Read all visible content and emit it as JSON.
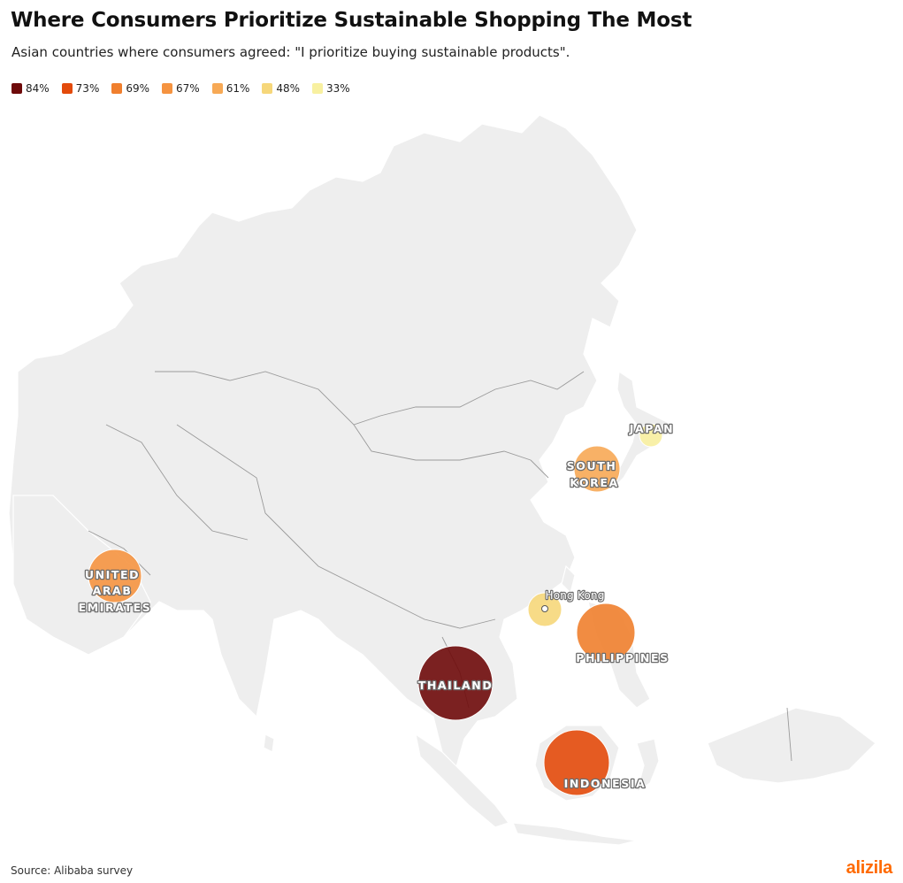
{
  "title": "Where Consumers Prioritize Sustainable Shopping The Most",
  "subtitle": "Asian countries where consumers agreed: \"I prioritize buying sustainable products\".",
  "legend": [
    {
      "label": "84%",
      "color": "#6e0a0a"
    },
    {
      "label": "73%",
      "color": "#e34a0b"
    },
    {
      "label": "69%",
      "color": "#f07f2e"
    },
    {
      "label": "67%",
      "color": "#f59340"
    },
    {
      "label": "61%",
      "color": "#f7a955"
    },
    {
      "label": "48%",
      "color": "#f6d77a"
    },
    {
      "label": "33%",
      "color": "#f8f0a0"
    }
  ],
  "countries": [
    {
      "label_lines": [
        "THAILAND"
      ],
      "value": 84,
      "color": "#6e0a0a"
    },
    {
      "label_lines": [
        "INDONESIA"
      ],
      "value": 73,
      "color": "#e34a0b"
    },
    {
      "label_lines": [
        "PHILIPPINES"
      ],
      "value": 69,
      "color": "#f07f2e"
    },
    {
      "label_lines": [
        "UNITED",
        "ARAB",
        "EMIRATES"
      ],
      "value": 67,
      "color": "#f59340"
    },
    {
      "label_lines": [
        "SOUTH",
        "KOREA"
      ],
      "value": 61,
      "color": "#f7a955"
    },
    {
      "label_lines": [
        "Hong Kong"
      ],
      "value": 48,
      "color": "#f6d77a"
    },
    {
      "label_lines": [
        "JAPAN"
      ],
      "value": 33,
      "color": "#f8f0a0"
    }
  ],
  "source": "Source: Alibaba survey",
  "brand": "alizila"
}
